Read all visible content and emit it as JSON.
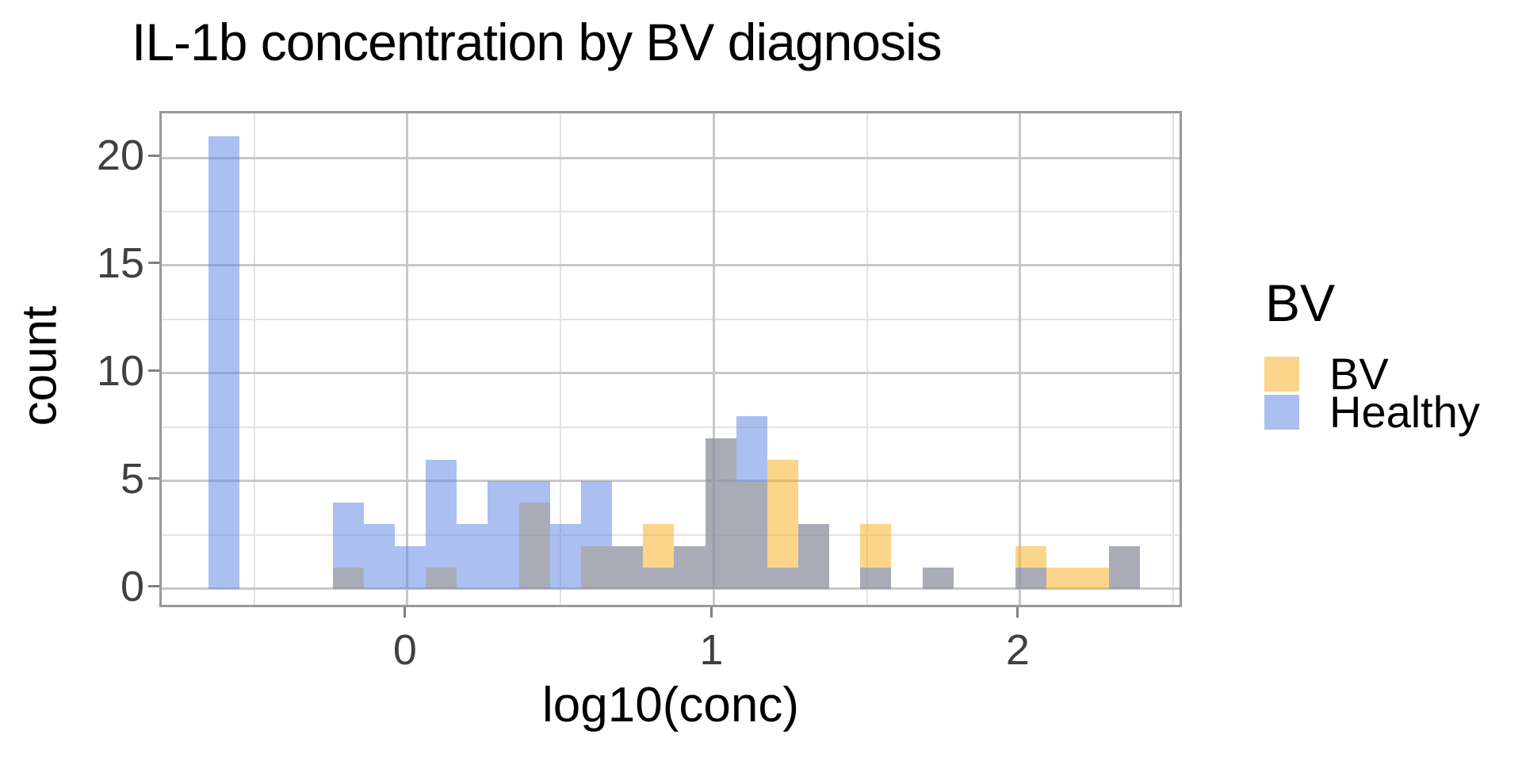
{
  "title": "IL-1b concentration by BV diagnosis",
  "axes": {
    "x_label": "log10(conc)",
    "y_label": "count",
    "x_tick_labels": [
      "0",
      "1",
      "2"
    ],
    "y_tick_labels": [
      "0",
      "5",
      "10",
      "15",
      "20"
    ]
  },
  "legend": {
    "title": "BV",
    "entries": [
      {
        "label": "BV",
        "color": "rgba(246,172,24,0.5)"
      },
      {
        "label": "Healthy",
        "color": "rgba(88,130,228,0.5)"
      }
    ]
  },
  "colors": {
    "bv_fill": "rgba(246,172,24,0.5)",
    "healthy_fill": "rgba(88,130,228,0.5)",
    "overlap_appearance": "#abacb6",
    "panel_border": "#999999",
    "grid_major": "#c8c8c8",
    "grid_minor": "#e3e3e3",
    "tick_mark": "#808080",
    "tick_label": "#404040"
  },
  "chart_data": {
    "type": "bar",
    "subtype": "overlaid_histogram",
    "title": "IL-1b concentration by BV diagnosis",
    "xlabel": "log10(conc)",
    "ylabel": "count",
    "legend_title": "BV",
    "legend_position": "right",
    "grid": true,
    "background": "white",
    "bin_width": 0.10133,
    "bin_origin": -0.6494,
    "bin_centers": [
      -0.599,
      -0.497,
      -0.396,
      -0.295,
      -0.193,
      -0.092,
      0.009,
      0.111,
      0.212,
      0.313,
      0.415,
      0.516,
      0.617,
      0.719,
      0.82,
      0.921,
      1.023,
      1.124,
      1.225,
      1.327,
      1.428,
      1.529,
      1.631,
      1.732,
      1.833,
      1.935,
      2.036,
      2.137,
      2.239,
      2.34
    ],
    "series": [
      {
        "name": "BV",
        "fill": "rgba(246,172,24,0.5)",
        "counts": [
          0,
          0,
          0,
          0,
          1,
          0,
          0,
          1,
          0,
          0,
          4,
          0,
          2,
          2,
          3,
          2,
          7,
          5,
          6,
          3,
          0,
          3,
          0,
          1,
          0,
          0,
          2,
          1,
          1,
          2
        ]
      },
      {
        "name": "Healthy",
        "fill": "rgba(88,130,228,0.5)",
        "counts": [
          21,
          0,
          0,
          0,
          4,
          3,
          2,
          6,
          3,
          5,
          5,
          3,
          5,
          2,
          1,
          2,
          7,
          8,
          1,
          3,
          0,
          1,
          0,
          1,
          0,
          0,
          1,
          0,
          0,
          2
        ]
      }
    ],
    "x_ticks": [
      0,
      1,
      2
    ],
    "x_minor_ticks": [
      -0.5,
      0.5,
      1.5,
      2.5
    ],
    "y_ticks": [
      0,
      5,
      10,
      15,
      20
    ],
    "y_minor_ticks": [
      2.5,
      7.5,
      12.5,
      17.5
    ],
    "x_domain": [
      -0.802,
      2.536
    ],
    "y_domain": [
      -0.96,
      22.06
    ]
  }
}
